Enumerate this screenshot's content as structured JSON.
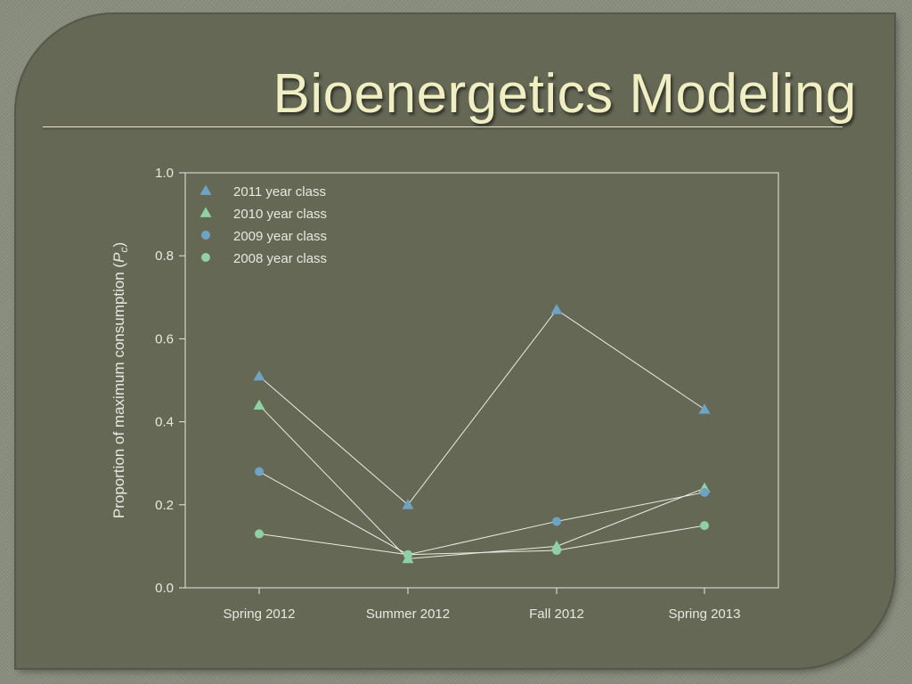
{
  "slide": {
    "title": "Bioenergetics Modeling"
  },
  "chart_data": {
    "type": "line",
    "xlabel": "",
    "ylabel_text": "Proportion of maximum consumption (",
    "ylabel_italic": "P",
    "ylabel_subscript": "c",
    "ylabel_close": ")",
    "categories": [
      "Spring 2012",
      "Summer 2012",
      "Fall 2012",
      "Spring 2013"
    ],
    "ylim": [
      0.0,
      1.0
    ],
    "yticks": [
      "0.0",
      "0.2",
      "0.4",
      "0.6",
      "0.8",
      "1.0"
    ],
    "grid": false,
    "legend_position": "top-left",
    "series": [
      {
        "name": "2011 year class",
        "marker": "triangle",
        "color": "#6fa3c4",
        "values": [
          0.51,
          0.2,
          0.67,
          0.43
        ]
      },
      {
        "name": "2010 year class",
        "marker": "triangle",
        "color": "#8fd0a6",
        "values": [
          0.44,
          0.07,
          0.1,
          0.24
        ]
      },
      {
        "name": "2009 year class",
        "marker": "circle",
        "color": "#6fa3c4",
        "values": [
          0.28,
          0.08,
          0.16,
          0.23
        ]
      },
      {
        "name": "2008 year class",
        "marker": "circle",
        "color": "#8fd0a6",
        "values": [
          0.13,
          0.08,
          0.09,
          0.15
        ]
      }
    ]
  },
  "colors": {
    "background": "#666856",
    "title": "#f0efc4",
    "axis": "#e8e8e0",
    "line": "#ecece4"
  }
}
